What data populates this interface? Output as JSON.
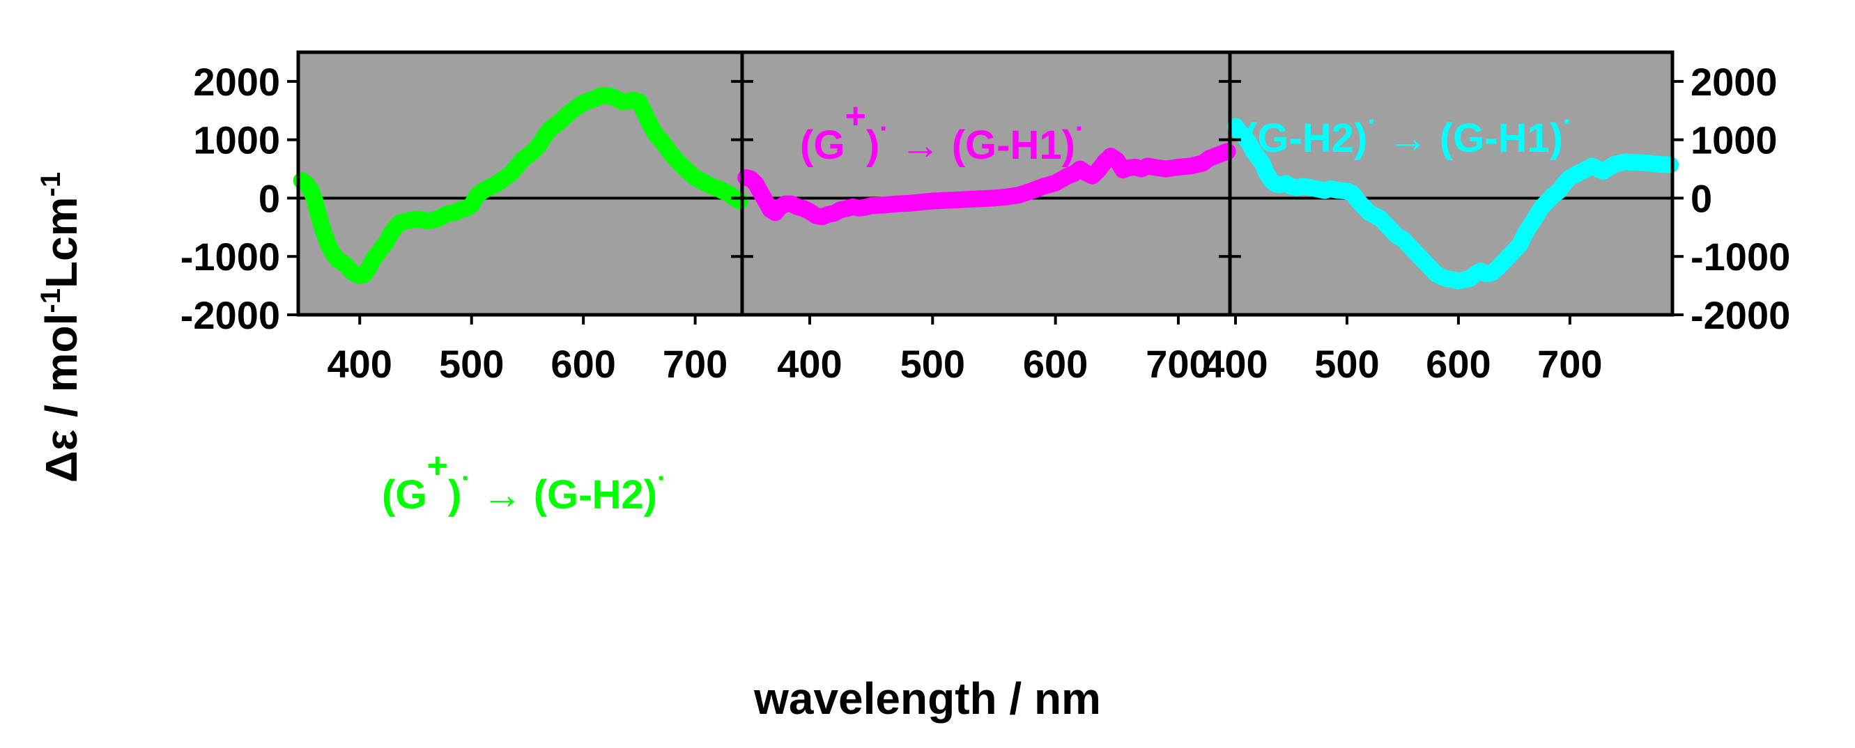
{
  "chart_data": {
    "type": "line",
    "layout": "three horizontally joined panels sharing one y axis",
    "ylabel": {
      "main": "Δε / mol",
      "exp1": "-1",
      "mid": "Lcm",
      "exp2": "-1"
    },
    "xlabel": "wavelength / nm",
    "ylim": [
      -2000,
      2500
    ],
    "yticks": [
      2000,
      1000,
      0,
      -1000,
      -2000
    ],
    "ytick_labels": [
      "2000",
      "1000",
      "0",
      "-1000",
      "-2000"
    ],
    "background_color": "#a0a0a0",
    "zero_line": true,
    "panels": [
      {
        "name": "panel-1",
        "xlim": [
          345,
          742
        ],
        "xticks": [
          400,
          500,
          600,
          700
        ],
        "xtick_labels": [
          "400",
          "500",
          "600",
          "700"
        ],
        "series": {
          "name": "(G+)• → (G-H2)•",
          "color": "#00ff00",
          "x": [
            348,
            352,
            356,
            360,
            364,
            368,
            372,
            376,
            380,
            384,
            388,
            392,
            396,
            400,
            404,
            408,
            412,
            416,
            420,
            424,
            428,
            432,
            436,
            440,
            445,
            450,
            455,
            460,
            465,
            470,
            475,
            480,
            485,
            490,
            495,
            500,
            505,
            510,
            515,
            520,
            525,
            530,
            535,
            540,
            545,
            550,
            555,
            560,
            565,
            570,
            575,
            580,
            585,
            590,
            595,
            600,
            605,
            610,
            615,
            620,
            625,
            630,
            635,
            640,
            645,
            650,
            655,
            660,
            665,
            670,
            675,
            680,
            685,
            690,
            695,
            700,
            705,
            710,
            715,
            720,
            725,
            730,
            735,
            740
          ],
          "y": [
            300,
            250,
            150,
            -50,
            -350,
            -600,
            -800,
            -950,
            -1050,
            -1100,
            -1150,
            -1250,
            -1300,
            -1330,
            -1310,
            -1200,
            -1050,
            -950,
            -850,
            -750,
            -600,
            -500,
            -420,
            -400,
            -380,
            -360,
            -370,
            -390,
            -380,
            -350,
            -300,
            -260,
            -250,
            -200,
            -180,
            -120,
            50,
            120,
            180,
            220,
            280,
            350,
            420,
            530,
            650,
            720,
            800,
            900,
            1050,
            1180,
            1250,
            1330,
            1420,
            1500,
            1570,
            1630,
            1670,
            1700,
            1750,
            1760,
            1740,
            1700,
            1650,
            1660,
            1680,
            1650,
            1450,
            1250,
            1080,
            980,
            850,
            720,
            620,
            520,
            430,
            350,
            300,
            250,
            200,
            170,
            120,
            80,
            0,
            -50
          ]
        },
        "annotation": {
          "base": "(G",
          "sup": "+",
          "mid": ")",
          "dot1": "·",
          "arrow": " → ",
          "tail": "(G-H2)",
          "dot2": "·"
        }
      },
      {
        "name": "panel-2",
        "xlim": [
          345,
          742
        ],
        "xticks": [
          400,
          500,
          600,
          700
        ],
        "xtick_labels": [
          "400",
          "500",
          "600",
          "700"
        ],
        "series": {
          "name": "(G+)• → (G-H1)•",
          "color": "#ff00ff",
          "x": [
            348,
            352,
            356,
            360,
            364,
            368,
            372,
            376,
            380,
            385,
            390,
            395,
            400,
            405,
            410,
            415,
            420,
            425,
            430,
            435,
            440,
            445,
            450,
            460,
            470,
            480,
            490,
            500,
            510,
            520,
            530,
            540,
            550,
            560,
            570,
            580,
            590,
            600,
            610,
            615,
            620,
            625,
            630,
            635,
            640,
            645,
            650,
            655,
            660,
            665,
            670,
            675,
            680,
            690,
            700,
            710,
            720,
            725,
            730,
            740
          ],
          "y": [
            350,
            330,
            250,
            100,
            -50,
            -200,
            -250,
            -150,
            -100,
            -100,
            -150,
            -180,
            -230,
            -300,
            -320,
            -280,
            -260,
            -200,
            -180,
            -150,
            -170,
            -160,
            -130,
            -120,
            -100,
            -90,
            -70,
            -50,
            -40,
            -30,
            -20,
            -10,
            0,
            20,
            50,
            120,
            200,
            260,
            380,
            420,
            500,
            430,
            380,
            480,
            620,
            720,
            650,
            480,
            520,
            530,
            500,
            550,
            530,
            500,
            530,
            550,
            600,
            680,
            720,
            800
          ]
        },
        "annotation": {
          "base": "(G",
          "sup": "+",
          "mid": ")",
          "dot1": "·",
          "arrow": " → ",
          "tail": "(G-H1)",
          "dot2": "·"
        }
      },
      {
        "name": "panel-3",
        "xlim": [
          395,
          792
        ],
        "xticks": [
          400,
          500,
          600,
          700
        ],
        "xtick_labels": [
          "400",
          "500",
          "600",
          "700"
        ],
        "series": {
          "name": "(G-H2)• → (G-H1)•",
          "color": "#00ffff",
          "x": [
            400,
            404,
            408,
            412,
            416,
            420,
            424,
            428,
            432,
            436,
            440,
            445,
            450,
            455,
            460,
            465,
            470,
            475,
            480,
            485,
            490,
            495,
            500,
            505,
            510,
            515,
            520,
            525,
            530,
            535,
            540,
            545,
            550,
            555,
            560,
            565,
            570,
            575,
            580,
            585,
            590,
            595,
            600,
            605,
            610,
            615,
            620,
            625,
            630,
            635,
            640,
            645,
            650,
            655,
            660,
            665,
            670,
            675,
            680,
            685,
            690,
            695,
            700,
            705,
            710,
            715,
            720,
            725,
            730,
            735,
            740,
            750,
            760,
            770,
            780,
            790
          ],
          "y": [
            1230,
            1130,
            1050,
            950,
            800,
            700,
            600,
            420,
            300,
            240,
            230,
            250,
            200,
            180,
            200,
            190,
            170,
            150,
            130,
            160,
            140,
            130,
            120,
            80,
            -50,
            -150,
            -250,
            -300,
            -350,
            -450,
            -550,
            -650,
            -700,
            -800,
            -900,
            -1000,
            -1100,
            -1200,
            -1300,
            -1350,
            -1380,
            -1400,
            -1420,
            -1400,
            -1380,
            -1300,
            -1250,
            -1300,
            -1280,
            -1200,
            -1100,
            -1000,
            -900,
            -800,
            -600,
            -450,
            -300,
            -150,
            -50,
            50,
            120,
            250,
            350,
            400,
            450,
            500,
            550,
            500,
            460,
            520,
            580,
            620,
            610,
            600,
            580,
            570
          ]
        },
        "annotation": {
          "base": "(G-H2)",
          "sup": "",
          "mid": "",
          "dot1": "·",
          "arrow": " → ",
          "tail": "(G-H1)",
          "dot2": "·"
        }
      }
    ]
  }
}
